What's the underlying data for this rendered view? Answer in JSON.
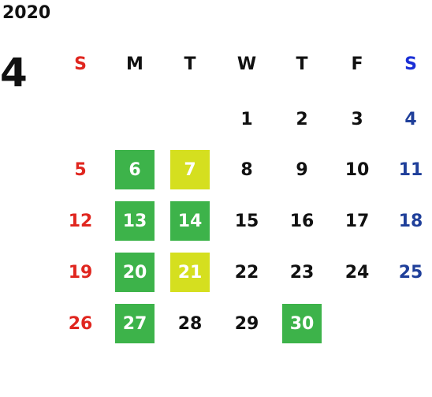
{
  "year": "2020",
  "month": "4",
  "colors": {
    "sunday": "#e0261f",
    "saturday": "#1f3f9a",
    "saturday_header": "#1a2fd6",
    "highlight_green": "#3db34a",
    "highlight_yellow": "#d5df1f"
  },
  "weekdays": [
    "S",
    "M",
    "T",
    "W",
    "T",
    "F",
    "S"
  ],
  "weeks": [
    [
      {
        "day": ""
      },
      {
        "day": ""
      },
      {
        "day": ""
      },
      {
        "day": "1"
      },
      {
        "day": "2"
      },
      {
        "day": "3"
      },
      {
        "day": "4"
      }
    ],
    [
      {
        "day": "5"
      },
      {
        "day": "6",
        "highlight": "green"
      },
      {
        "day": "7",
        "highlight": "yellow"
      },
      {
        "day": "8"
      },
      {
        "day": "9"
      },
      {
        "day": "10"
      },
      {
        "day": "11"
      }
    ],
    [
      {
        "day": "12"
      },
      {
        "day": "13",
        "highlight": "green"
      },
      {
        "day": "14",
        "highlight": "green"
      },
      {
        "day": "15"
      },
      {
        "day": "16"
      },
      {
        "day": "17"
      },
      {
        "day": "18"
      }
    ],
    [
      {
        "day": "19"
      },
      {
        "day": "20",
        "highlight": "green"
      },
      {
        "day": "21",
        "highlight": "yellow"
      },
      {
        "day": "22"
      },
      {
        "day": "23"
      },
      {
        "day": "24"
      },
      {
        "day": "25"
      }
    ],
    [
      {
        "day": "26"
      },
      {
        "day": "27",
        "highlight": "green"
      },
      {
        "day": "28"
      },
      {
        "day": "29"
      },
      {
        "day": "30",
        "highlight": "green"
      },
      {
        "day": ""
      },
      {
        "day": ""
      }
    ]
  ]
}
